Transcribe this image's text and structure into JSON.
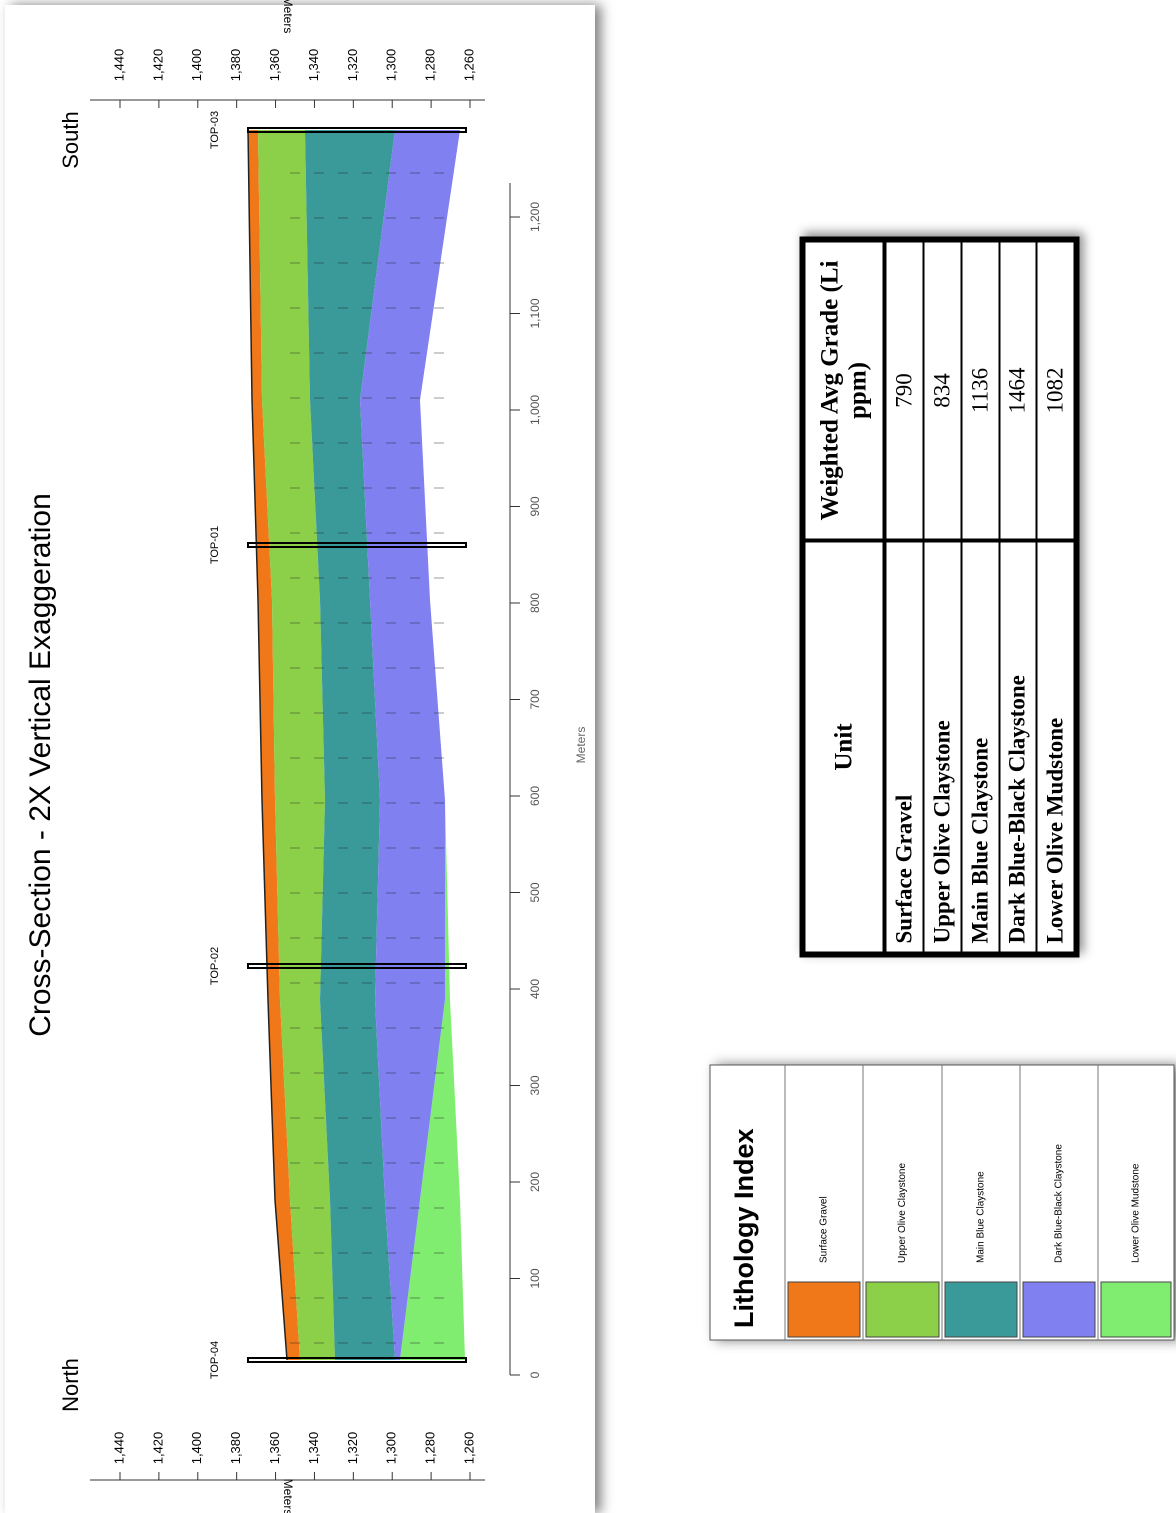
{
  "cross_section": {
    "title": "Cross-Section - 2X Vertical Exaggeration",
    "north": "North",
    "south": "South",
    "elevation_axis_label": "Meters",
    "elevation_ticks": [
      "1,440",
      "1,420",
      "1,400",
      "1,380",
      "1,360",
      "1,340",
      "1,320",
      "1,300",
      "1,280",
      "1,260"
    ],
    "distance_axis_label": "Meters",
    "distance_ticks": [
      "0",
      "100",
      "200",
      "300",
      "400",
      "500",
      "600",
      "700",
      "800",
      "900",
      "1,000",
      "1,100",
      "1,200"
    ],
    "wells": [
      "TOP-04",
      "TOP-02",
      "TOP-01",
      "TOP-03"
    ]
  },
  "table": {
    "header": [
      "Unit",
      "Weighted Avg Grade (Li ppm)"
    ],
    "rows": [
      [
        "Surface Gravel",
        "790"
      ],
      [
        "Upper Olive Claystone",
        "834"
      ],
      [
        "Main Blue Claystone",
        "1136"
      ],
      [
        "Dark Blue-Black Claystone",
        "1464"
      ],
      [
        "Lower Olive Mudstone",
        "1082"
      ]
    ]
  },
  "legend": {
    "title": "Lithology Index",
    "items": [
      "Surface Gravel",
      "Upper Olive Claystone",
      "Main Blue Claystone",
      "Dark Blue-Black Claystone",
      "Lower Olive Mudstone"
    ]
  }
}
